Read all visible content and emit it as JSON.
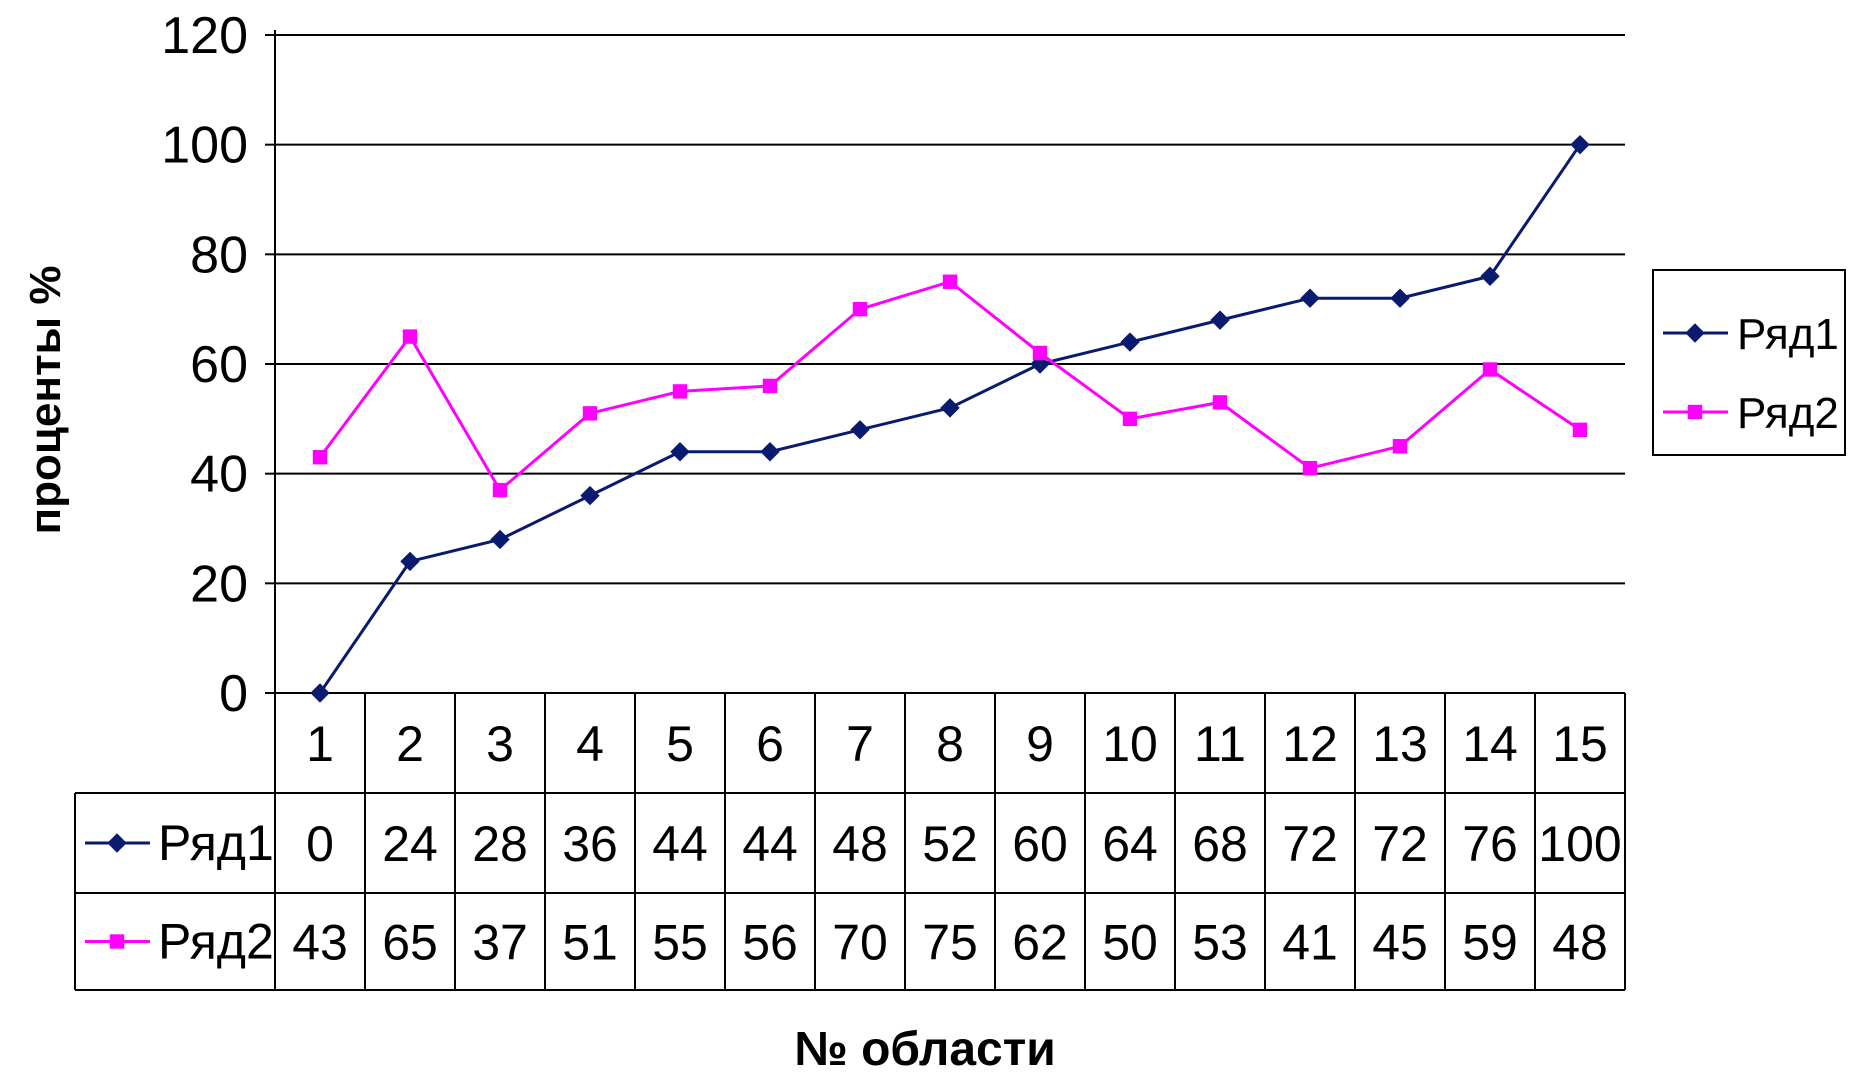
{
  "chart_data": {
    "type": "line",
    "title": "",
    "xlabel": "№ области",
    "ylabel": "проценты %",
    "ylim": [
      0,
      120
    ],
    "yticks": [
      0,
      20,
      40,
      60,
      80,
      100,
      120
    ],
    "categories": [
      "1",
      "2",
      "3",
      "4",
      "5",
      "6",
      "7",
      "8",
      "9",
      "10",
      "11",
      "12",
      "13",
      "14",
      "15"
    ],
    "grid": "horizontal",
    "legend_position": "right",
    "data_table": true,
    "series": [
      {
        "name": "Ряд1",
        "color": "#0a1a6e",
        "marker": "diamond",
        "values": [
          0,
          24,
          28,
          36,
          44,
          44,
          48,
          52,
          60,
          64,
          68,
          72,
          72,
          76,
          100
        ]
      },
      {
        "name": "Ряд2",
        "color": "#ff00ff",
        "marker": "square",
        "values": [
          43,
          65,
          37,
          51,
          55,
          56,
          70,
          75,
          62,
          50,
          53,
          41,
          45,
          59,
          48
        ]
      }
    ]
  }
}
